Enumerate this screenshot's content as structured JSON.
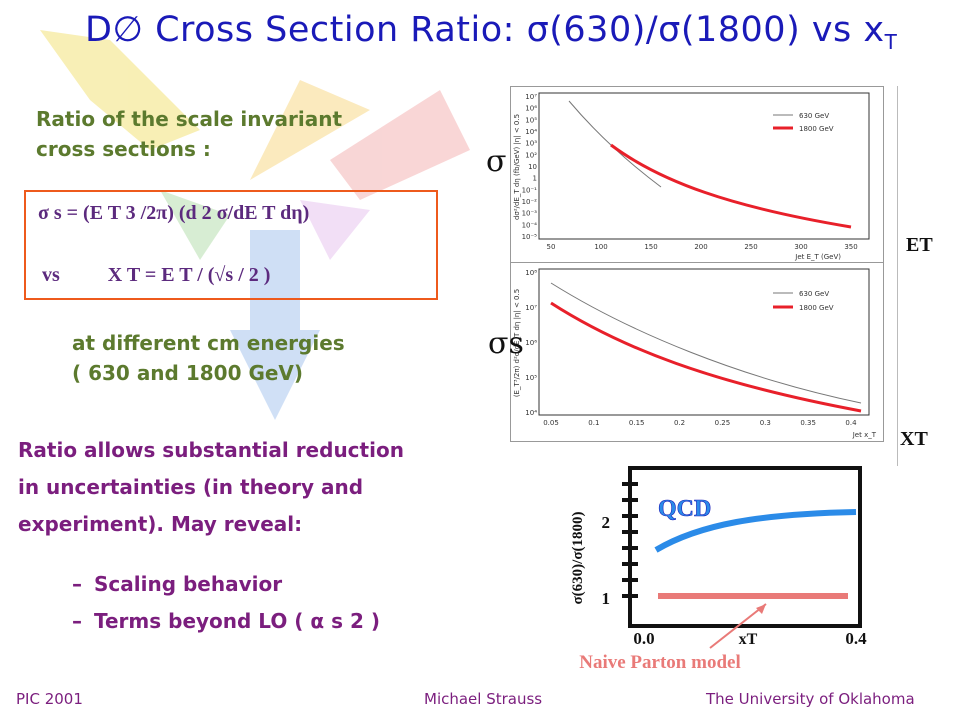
{
  "title": {
    "main": "D∅ Cross Section Ratio: σ(630)/σ(1800) vs x",
    "sub": "T"
  },
  "intro": {
    "line1": "Ratio of  the scale invariant",
    "line2": "cross sections :"
  },
  "formula": {
    "line1": "σ s = (E T 3 /2π) (d 2 σ/dE T dη)",
    "line2_vs": "vs",
    "line2_xt": "X T = E T / (√s / 2 )"
  },
  "cm": {
    "line1": "at different cm energies",
    "line2": "( 630 and 1800 GeV)"
  },
  "ratio_text": {
    "line1": "Ratio allows substantial reduction",
    "line2": "in uncertainties (in theory and",
    "line3": "experiment).  May reveal:"
  },
  "bullets": [
    {
      "dash": "–",
      "text": "Scaling behavior"
    },
    {
      "dash": "–",
      "text": "Terms beyond LO ( α s 2 )"
    }
  ],
  "plots": {
    "sigma_label": "σ",
    "sigma_s_label": "σs",
    "et_label": "ET",
    "xt_label": "XT",
    "top": {
      "ylabel": "dσ²/dE_T dη (fb/GeV) |η| < 0.5",
      "xlabel": "Jet E_T (GeV)",
      "xticks": [
        "50",
        "100",
        "150",
        "200",
        "250",
        "300",
        "350"
      ],
      "yticks": [
        "10⁷",
        "10⁶",
        "10⁵",
        "10⁴",
        "10³",
        "10²",
        "10",
        "1",
        "10⁻¹",
        "10⁻²",
        "10⁻³",
        "10⁻⁴",
        "10⁻⁵"
      ],
      "legend": [
        {
          "name": "630 GeV",
          "color": "#777777"
        },
        {
          "name": "1800 GeV",
          "color": "#e8202a"
        }
      ]
    },
    "bottom": {
      "ylabel": "(E_T³/2π) d²σ/dE_T dη |η| < 0.5",
      "xlabel": "Jet x_T",
      "xticks": [
        "0.05",
        "0.1",
        "0.15",
        "0.2",
        "0.25",
        "0.3",
        "0.35",
        "0.4"
      ],
      "yticks": [
        "10⁸",
        "10⁷",
        "10⁶",
        "10⁵",
        "10⁴"
      ],
      "legend": [
        {
          "name": "630 GeV",
          "color": "#777777"
        },
        {
          "name": "1800 GeV",
          "color": "#e8202a"
        }
      ]
    },
    "sketch": {
      "ylabel": "σ(630)/σ(1800)",
      "y2": "2",
      "y1": "1",
      "x0": "0.0",
      "x1": "0.4",
      "xlabel": "xT",
      "qcd": "QCD",
      "naive": "Naive Parton model"
    }
  },
  "footer": {
    "left": "PIC 2001",
    "center": "Michael Strauss",
    "right": "The University of Oklahoma"
  },
  "colors": {
    "title": "#1a1ab8",
    "green": "#5c7a2e",
    "purple": "#7b1e7e",
    "orange": "#ee5a1c",
    "qcd": "#2b8be8",
    "naive": "#e97a78"
  }
}
